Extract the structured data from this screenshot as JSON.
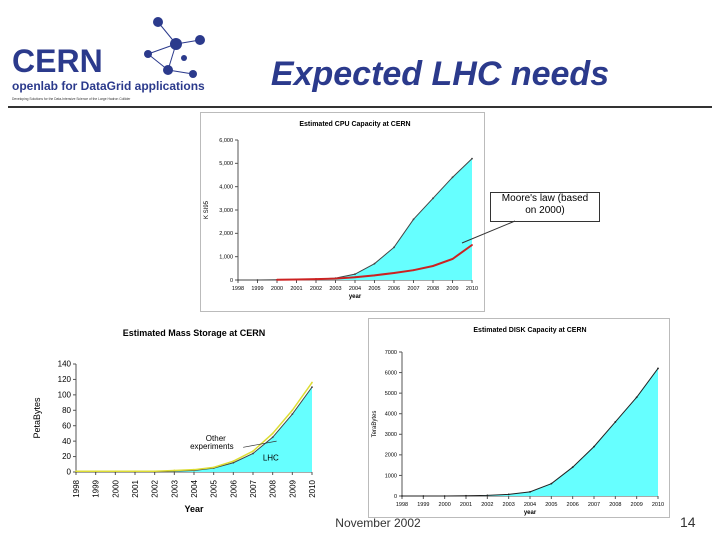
{
  "logo": {
    "wordmark": "CERN",
    "subtitle": "openlab for DataGrid applications",
    "tagline": "Developing Solutions for the Data-Intensive Science of the Large Hadron Collider"
  },
  "slide_title": "Expected LHC needs",
  "callout": {
    "line1": "Moore's law (based",
    "line2": "on 2000)"
  },
  "footer": {
    "date": "November 2002",
    "page": "14"
  },
  "colors": {
    "fill": "#66ffff",
    "moore": "#cc2222",
    "title": "#2b3a8c"
  },
  "chart_data": [
    {
      "type": "area",
      "title": "Estimated CPU Capacity at CERN",
      "xlabel": "year",
      "ylabel": "K SI95",
      "x": [
        "1998",
        "1999",
        "2000",
        "2001",
        "2002",
        "2003",
        "2004",
        "2005",
        "2006",
        "2007",
        "2008",
        "2009",
        "2010"
      ],
      "y_ticks": [
        "0",
        "1,000",
        "2,000",
        "3,000",
        "4,000",
        "5,000",
        "6,000"
      ],
      "ylim": [
        0,
        6000
      ],
      "series": [
        {
          "values": [
            0,
            0,
            10,
            20,
            40,
            80,
            250,
            700,
            1400,
            2600,
            3500,
            4400,
            5200
          ]
        },
        {
          "values": [
            null,
            null,
            10,
            20,
            35,
            60,
            120,
            200,
            300,
            420,
            600,
            900,
            1500
          ]
        }
      ],
      "grid": false
    },
    {
      "type": "area",
      "title": "Estimated Mass Storage at CERN",
      "xlabel": "Year",
      "ylabel": "PetaBytes",
      "x": [
        "1998",
        "1999",
        "2000",
        "2001",
        "2002",
        "2003",
        "2004",
        "2005",
        "2006",
        "2007",
        "2008",
        "2009",
        "2010"
      ],
      "y_ticks": [
        "0",
        "20",
        "40",
        "60",
        "80",
        "100",
        "120",
        "140"
      ],
      "ylim": [
        0,
        140
      ],
      "series": [
        {
          "name": "LHC",
          "values": [
            0,
            0,
            0,
            0,
            0,
            1,
            2,
            5,
            12,
            24,
            45,
            75,
            110
          ]
        },
        {
          "name": "Other experiments",
          "values": [
            1,
            1,
            1,
            1,
            1,
            2,
            3,
            6,
            14,
            27,
            50,
            80,
            116
          ]
        }
      ],
      "annotations": [
        "Other experiments",
        "LHC"
      ],
      "grid": false
    },
    {
      "type": "area",
      "title": "Estimated DISK Capacity at CERN",
      "xlabel": "year",
      "ylabel": "TeraBytes",
      "x": [
        "1998",
        "1999",
        "2000",
        "2001",
        "2002",
        "2003",
        "2004",
        "2005",
        "2006",
        "2007",
        "2008",
        "2009",
        "2010"
      ],
      "y_ticks": [
        "0",
        "1000",
        "2000",
        "3000",
        "4000",
        "5000",
        "6000",
        "7000"
      ],
      "ylim": [
        0,
        7000
      ],
      "series": [
        {
          "values": [
            0,
            0,
            0,
            10,
            30,
            80,
            200,
            600,
            1400,
            2400,
            3600,
            4800,
            6200
          ]
        }
      ],
      "grid": false
    }
  ]
}
